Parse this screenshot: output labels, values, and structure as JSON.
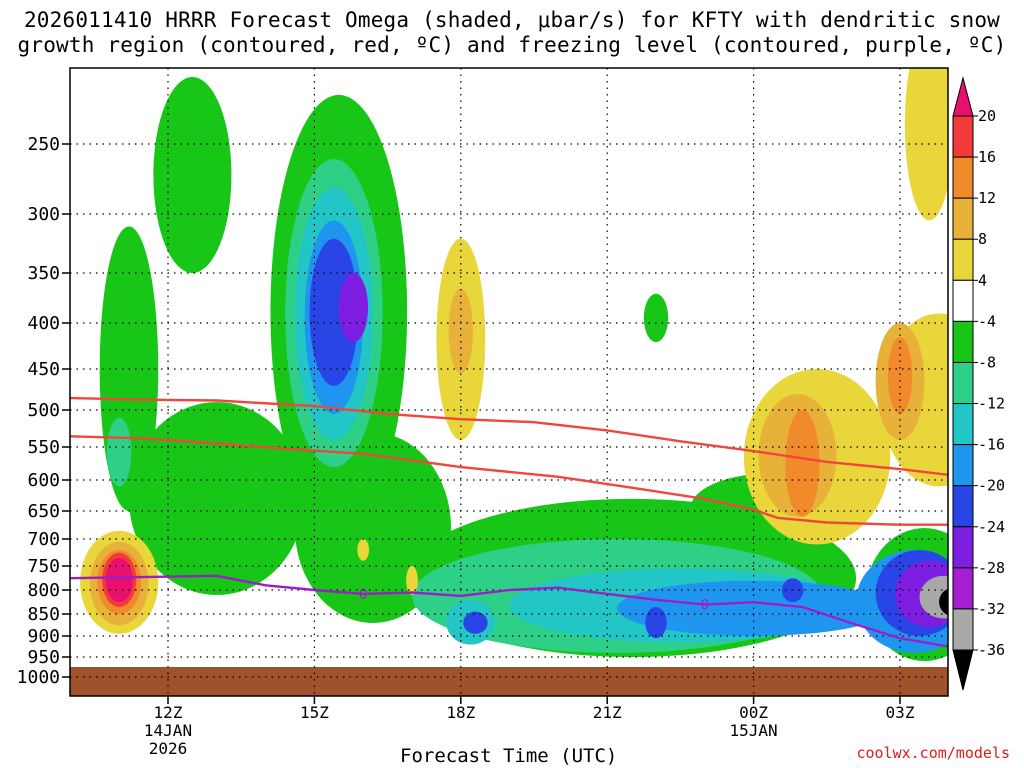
{
  "chart_data": {
    "type": "heatmap",
    "title": "2026011410 HRRR Forecast Omega (shaded, μbar/s) for KFTY with dendritic snow\ngrowth region (contoured, red, ºC) and freezing level (contoured, purple, ºC)",
    "xlabel": "Forecast Time (UTC)",
    "ylabel": "",
    "y_ticks": [
      250,
      300,
      350,
      400,
      450,
      500,
      550,
      600,
      650,
      700,
      750,
      800,
      850,
      900,
      950,
      1000
    ],
    "y_tick_labels": [
      "250",
      "300",
      "350",
      "400",
      "450",
      "500",
      "550",
      "600",
      "650",
      "700",
      "750",
      "800",
      "850",
      "900",
      "950",
      "1000"
    ],
    "x_ticks": [
      {
        "hour": 12,
        "label": "12Z",
        "sub": [
          "14JAN",
          "2026"
        ]
      },
      {
        "hour": 15,
        "label": "15Z",
        "sub": []
      },
      {
        "hour": 18,
        "label": "18Z",
        "sub": []
      },
      {
        "hour": 21,
        "label": "21Z",
        "sub": []
      },
      {
        "hour": 24,
        "label": "00Z",
        "sub": [
          "15JAN"
        ]
      },
      {
        "hour": 27,
        "label": "03Z",
        "sub": []
      }
    ],
    "x_range_hours": [
      10,
      28
    ],
    "y_range_hPa": [
      1000,
      200
    ],
    "colorbar_labels": [
      "20",
      "16",
      "12",
      "8",
      "4",
      "-4",
      "-8",
      "-12",
      "-16",
      "-20",
      "-24",
      "-28",
      "-32",
      "-36"
    ],
    "colorbar_colors": [
      "#e8106e",
      "#f23a3a",
      "#f08a2a",
      "#e8b23a",
      "#e8d63a",
      "#ffffff",
      "#17c617",
      "#2ecf86",
      "#22c6c6",
      "#1e96f0",
      "#2a45e6",
      "#7e1ee0",
      "#a51ed2",
      "#a8a8a8",
      "#000000"
    ],
    "dendritic_contour_color": "#f0463c",
    "freezing_level_color": "#9b1fc7",
    "freezing_level_label": "0",
    "dendritic_upper_hPa": [
      [
        10.0,
        485
      ],
      [
        11.5,
        487
      ],
      [
        13.0,
        488
      ],
      [
        15.0,
        495
      ],
      [
        16.5,
        505
      ],
      [
        18.0,
        512
      ],
      [
        19.5,
        516
      ],
      [
        21.0,
        527
      ],
      [
        22.5,
        542
      ],
      [
        24.0,
        556
      ],
      [
        25.5,
        572
      ],
      [
        27.0,
        583
      ],
      [
        28.0,
        592
      ]
    ],
    "dendritic_lower_hPa": [
      [
        10.0,
        535
      ],
      [
        11.5,
        538
      ],
      [
        13.0,
        545
      ],
      [
        14.5,
        553
      ],
      [
        16.0,
        560
      ],
      [
        18.0,
        580
      ],
      [
        20.0,
        595
      ],
      [
        21.5,
        612
      ],
      [
        23.0,
        630
      ],
      [
        24.0,
        648
      ],
      [
        24.5,
        662
      ],
      [
        25.5,
        670
      ],
      [
        27.0,
        674
      ],
      [
        28.0,
        674
      ]
    ],
    "freezing_level_hPa": [
      [
        10.0,
        775
      ],
      [
        13.0,
        770
      ],
      [
        14.0,
        790
      ],
      [
        15.0,
        800
      ],
      [
        16.0,
        808
      ],
      [
        17.0,
        805
      ],
      [
        18.0,
        812
      ],
      [
        19.0,
        800
      ],
      [
        20.0,
        795
      ],
      [
        21.0,
        808
      ],
      [
        22.0,
        820
      ],
      [
        23.0,
        830
      ],
      [
        24.0,
        825
      ],
      [
        25.0,
        835
      ],
      [
        26.0,
        870
      ],
      [
        27.0,
        905
      ],
      [
        28.0,
        925
      ]
    ],
    "omega_fields": [
      {
        "value": -8,
        "color": "#17c617",
        "regions": [
          {
            "center": [
              15.5,
              450
            ],
            "rx_h": 1.4,
            "ry_hPa": 230
          },
          {
            "center": [
              16.2,
              700
            ],
            "rx_h": 1.6,
            "ry_hPa": 170
          },
          {
            "center": [
              13.0,
              650
            ],
            "rx_h": 1.8,
            "ry_hPa": 160
          },
          {
            "center": [
              11.2,
              480
            ],
            "rx_h": 0.6,
            "ry_hPa": 170
          },
          {
            "center": [
              21.5,
              790
            ],
            "rx_h": 4.6,
            "ry_hPa": 160
          },
          {
            "center": [
              12.5,
              280
            ],
            "rx_h": 0.8,
            "ry_hPa": 70
          },
          {
            "center": [
              22.0,
              395
            ],
            "rx_h": 0.25,
            "ry_hPa": 25
          },
          {
            "center": [
              24.3,
              650
            ],
            "rx_h": 1.6,
            "ry_hPa": 60
          },
          {
            "center": [
              27.5,
              820
            ],
            "rx_h": 1.2,
            "ry_hPa": 140
          }
        ]
      },
      {
        "value": -12,
        "color": "#2ecf86",
        "regions": [
          {
            "center": [
              15.4,
              420
            ],
            "rx_h": 1.0,
            "ry_hPa": 160
          },
          {
            "center": [
              21.2,
              820
            ],
            "rx_h": 4.2,
            "ry_hPa": 120
          },
          {
            "center": [
              11.0,
              560
            ],
            "rx_h": 0.25,
            "ry_hPa": 50
          }
        ]
      },
      {
        "value": -16,
        "color": "#22c6c6",
        "regions": [
          {
            "center": [
              15.4,
              410
            ],
            "rx_h": 0.8,
            "ry_hPa": 130
          },
          {
            "center": [
              22.5,
              835
            ],
            "rx_h": 3.5,
            "ry_hPa": 80
          },
          {
            "center": [
              18.2,
              870
            ],
            "rx_h": 0.5,
            "ry_hPa": 50
          }
        ]
      },
      {
        "value": -20,
        "color": "#1e96f0",
        "regions": [
          {
            "center": [
              15.4,
              405
            ],
            "rx_h": 0.6,
            "ry_hPa": 100
          },
          {
            "center": [
              24.0,
              840
            ],
            "rx_h": 2.8,
            "ry_hPa": 60
          },
          {
            "center": [
              27.3,
              830
            ],
            "rx_h": 1.2,
            "ry_hPa": 110
          }
        ]
      },
      {
        "value": -24,
        "color": "#2a45e6",
        "regions": [
          {
            "center": [
              15.4,
              395
            ],
            "rx_h": 0.5,
            "ry_hPa": 75
          },
          {
            "center": [
              18.3,
              870
            ],
            "rx_h": 0.25,
            "ry_hPa": 25
          },
          {
            "center": [
              22.0,
              870
            ],
            "rx_h": 0.22,
            "ry_hPa": 35
          },
          {
            "center": [
              24.8,
              800
            ],
            "rx_h": 0.22,
            "ry_hPa": 25
          },
          {
            "center": [
              27.4,
              810
            ],
            "rx_h": 0.9,
            "ry_hPa": 90
          }
        ]
      },
      {
        "value": -28,
        "color": "#7e1ee0",
        "regions": [
          {
            "center": [
              15.8,
              385
            ],
            "rx_h": 0.3,
            "ry_hPa": 35
          },
          {
            "center": [
              27.6,
              810
            ],
            "rx_h": 0.7,
            "ry_hPa": 70
          }
        ]
      },
      {
        "value": -32,
        "color": "#a8a8a8",
        "regions": [
          {
            "center": [
              27.9,
              815
            ],
            "rx_h": 0.5,
            "ry_hPa": 45
          }
        ]
      },
      {
        "value": -36,
        "color": "#000000",
        "regions": [
          {
            "center": [
              28.1,
              825
            ],
            "rx_h": 0.3,
            "ry_hPa": 30
          }
        ]
      },
      {
        "value": 4,
        "color": "#e8d63a",
        "regions": [
          {
            "center": [
              11.0,
              790
            ],
            "rx_h": 0.8,
            "ry_hPa": 105
          },
          {
            "center": [
              18.0,
              430
            ],
            "rx_h": 0.5,
            "ry_hPa": 110
          },
          {
            "center": [
              25.3,
              580
            ],
            "rx_h": 1.5,
            "ry_hPa": 130
          },
          {
            "center": [
              27.8,
              500
            ],
            "rx_h": 1.2,
            "ry_hPa": 110
          },
          {
            "center": [
              27.6,
              245
            ],
            "rx_h": 0.5,
            "ry_hPa": 60
          },
          {
            "center": [
              17.0,
              780
            ],
            "rx_h": 0.12,
            "ry_hPa": 30
          },
          {
            "center": [
              16.0,
              720
            ],
            "rx_h": 0.12,
            "ry_hPa": 20
          }
        ]
      },
      {
        "value": 8,
        "color": "#e8b23a",
        "regions": [
          {
            "center": [
              11.0,
              790
            ],
            "rx_h": 0.6,
            "ry_hPa": 85
          },
          {
            "center": [
              18.0,
              410
            ],
            "rx_h": 0.25,
            "ry_hPa": 45
          },
          {
            "center": [
              24.9,
              570
            ],
            "rx_h": 0.8,
            "ry_hPa": 90
          },
          {
            "center": [
              27.0,
              470
            ],
            "rx_h": 0.5,
            "ry_hPa": 70
          }
        ]
      },
      {
        "value": 12,
        "color": "#f08a2a",
        "regions": [
          {
            "center": [
              11.0,
              785
            ],
            "rx_h": 0.45,
            "ry_hPa": 65
          },
          {
            "center": [
              25.0,
              580
            ],
            "rx_h": 0.35,
            "ry_hPa": 80
          },
          {
            "center": [
              27.0,
              460
            ],
            "rx_h": 0.25,
            "ry_hPa": 45
          }
        ]
      },
      {
        "value": 16,
        "color": "#f23a3a",
        "regions": [
          {
            "center": [
              11.0,
              780
            ],
            "rx_h": 0.35,
            "ry_hPa": 55
          }
        ]
      },
      {
        "value": 20,
        "color": "#e8106e",
        "regions": [
          {
            "center": [
              11.0,
              780
            ],
            "rx_h": 0.28,
            "ry_hPa": 45
          }
        ]
      }
    ],
    "terrain_color": "#a0522d"
  },
  "credit": "coolwx.com/models"
}
